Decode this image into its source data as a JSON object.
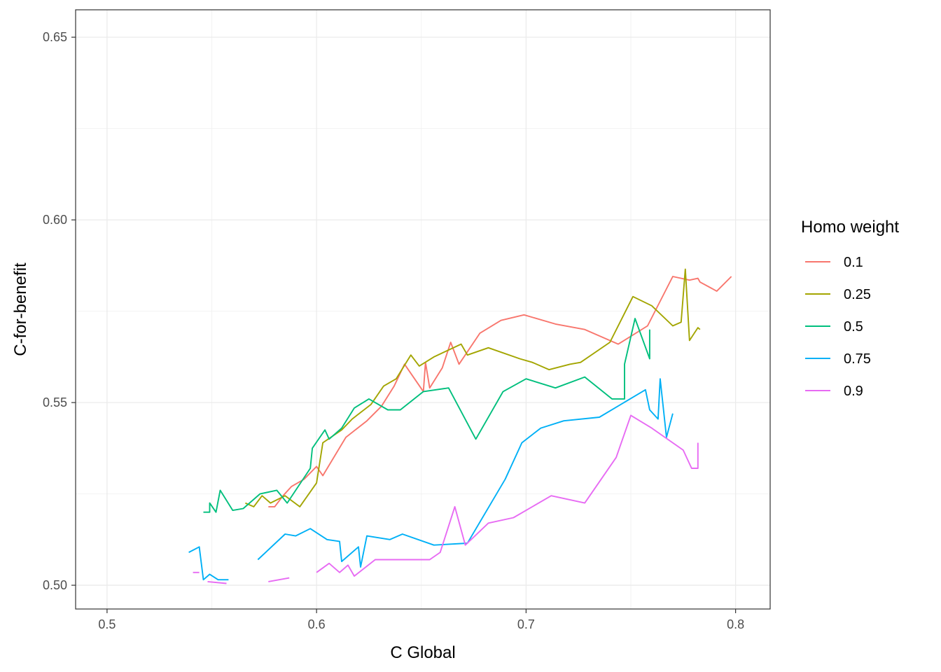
{
  "chart_data": {
    "type": "line",
    "title": "",
    "xlabel": "C Global",
    "ylabel": "C-for-benefit",
    "xlim": [
      0.485,
      0.8165
    ],
    "ylim": [
      0.4935,
      0.6575
    ],
    "x_ticks": [
      0.5,
      0.6,
      0.7,
      0.8
    ],
    "x_tick_labels": [
      "0.5",
      "0.6",
      "0.7",
      "0.8"
    ],
    "y_ticks": [
      0.5,
      0.55,
      0.6,
      0.65
    ],
    "y_tick_labels": [
      "0.50",
      "0.55",
      "0.60",
      "0.65"
    ],
    "grid": true,
    "legend": {
      "title": "Homo weight",
      "position": "right"
    },
    "series": [
      {
        "name": "0.1",
        "color": "#F8766D",
        "segments": [
          [
            [
              0.577,
              0.5215
            ],
            [
              0.58,
              0.5215
            ],
            [
              0.584,
              0.5245
            ],
            [
              0.588,
              0.527
            ],
            [
              0.594,
              0.529
            ],
            [
              0.6,
              0.5325
            ],
            [
              0.603,
              0.53
            ],
            [
              0.614,
              0.5405
            ],
            [
              0.624,
              0.545
            ],
            [
              0.631,
              0.549
            ],
            [
              0.637,
              0.5545
            ],
            [
              0.642,
              0.5605
            ],
            [
              0.651,
              0.553
            ],
            [
              0.652,
              0.561
            ],
            [
              0.654,
              0.554
            ],
            [
              0.66,
              0.5595
            ],
            [
              0.664,
              0.5665
            ],
            [
              0.668,
              0.5605
            ],
            [
              0.678,
              0.569
            ],
            [
              0.688,
              0.5725
            ],
            [
              0.699,
              0.574
            ],
            [
              0.714,
              0.5715
            ],
            [
              0.728,
              0.57
            ],
            [
              0.744,
              0.566
            ],
            [
              0.758,
              0.571
            ],
            [
              0.77,
              0.5845
            ],
            [
              0.778,
              0.5835
            ],
            [
              0.782,
              0.584
            ],
            [
              0.783,
              0.583
            ],
            [
              0.791,
              0.5805
            ],
            [
              0.798,
              0.5845
            ]
          ]
        ]
      },
      {
        "name": "0.25",
        "color": "#A3A500",
        "segments": [
          [
            [
              0.566,
              0.5225
            ],
            [
              0.57,
              0.5215
            ],
            [
              0.574,
              0.5245
            ],
            [
              0.578,
              0.5225
            ],
            [
              0.585,
              0.5245
            ],
            [
              0.592,
              0.5215
            ],
            [
              0.6,
              0.528
            ],
            [
              0.603,
              0.539
            ],
            [
              0.612,
              0.5425
            ],
            [
              0.617,
              0.5455
            ],
            [
              0.626,
              0.5495
            ],
            [
              0.632,
              0.5545
            ],
            [
              0.638,
              0.5565
            ],
            [
              0.645,
              0.563
            ],
            [
              0.649,
              0.56
            ],
            [
              0.656,
              0.5625
            ],
            [
              0.669,
              0.566
            ],
            [
              0.672,
              0.563
            ],
            [
              0.682,
              0.565
            ],
            [
              0.697,
              0.562
            ],
            [
              0.703,
              0.561
            ],
            [
              0.711,
              0.559
            ],
            [
              0.721,
              0.5605
            ],
            [
              0.726,
              0.561
            ],
            [
              0.74,
              0.5665
            ],
            [
              0.751,
              0.579
            ],
            [
              0.76,
              0.5765
            ],
            [
              0.77,
              0.571
            ],
            [
              0.774,
              0.572
            ],
            [
              0.776,
              0.5865
            ],
            [
              0.778,
              0.567
            ],
            [
              0.782,
              0.5705
            ],
            [
              0.783,
              0.57
            ]
          ]
        ]
      },
      {
        "name": "0.5",
        "color": "#00BF7D",
        "segments": [
          [
            [
              0.546,
              0.52
            ],
            [
              0.549,
              0.52
            ],
            [
              0.549,
              0.5225
            ],
            [
              0.552,
              0.52
            ],
            [
              0.554,
              0.526
            ],
            [
              0.56,
              0.5205
            ],
            [
              0.565,
              0.521
            ],
            [
              0.573,
              0.525
            ],
            [
              0.581,
              0.526
            ],
            [
              0.586,
              0.5225
            ],
            [
              0.597,
              0.532
            ],
            [
              0.598,
              0.5375
            ],
            [
              0.604,
              0.5425
            ],
            [
              0.606,
              0.54
            ],
            [
              0.612,
              0.543
            ],
            [
              0.618,
              0.5485
            ],
            [
              0.625,
              0.551
            ],
            [
              0.634,
              0.548
            ],
            [
              0.64,
              0.548
            ],
            [
              0.651,
              0.553
            ],
            [
              0.663,
              0.554
            ],
            [
              0.676,
              0.54
            ],
            [
              0.689,
              0.553
            ],
            [
              0.7,
              0.5565
            ],
            [
              0.714,
              0.554
            ],
            [
              0.728,
              0.557
            ],
            [
              0.741,
              0.551
            ],
            [
              0.747,
              0.551
            ],
            [
              0.747,
              0.5605
            ],
            [
              0.752,
              0.573
            ],
            [
              0.759,
              0.562
            ],
            [
              0.759,
              0.57
            ]
          ]
        ]
      },
      {
        "name": "0.75",
        "color": "#00B0F6",
        "segments": [
          [
            [
              0.539,
              0.509
            ],
            [
              0.544,
              0.5105
            ],
            [
              0.546,
              0.5015
            ],
            [
              0.549,
              0.503
            ],
            [
              0.553,
              0.5015
            ],
            [
              0.558,
              0.5015
            ]
          ],
          [
            [
              0.572,
              0.507
            ],
            [
              0.585,
              0.514
            ],
            [
              0.59,
              0.5135
            ],
            [
              0.597,
              0.5155
            ],
            [
              0.605,
              0.5125
            ],
            [
              0.611,
              0.512
            ],
            [
              0.612,
              0.5065
            ],
            [
              0.62,
              0.5105
            ],
            [
              0.621,
              0.505
            ],
            [
              0.624,
              0.5135
            ],
            [
              0.635,
              0.5125
            ],
            [
              0.641,
              0.514
            ],
            [
              0.656,
              0.511
            ],
            [
              0.672,
              0.5115
            ],
            [
              0.69,
              0.529
            ],
            [
              0.698,
              0.539
            ],
            [
              0.707,
              0.543
            ],
            [
              0.718,
              0.545
            ],
            [
              0.735,
              0.546
            ],
            [
              0.757,
              0.5535
            ],
            [
              0.759,
              0.548
            ],
            [
              0.763,
              0.5455
            ],
            [
              0.764,
              0.5565
            ],
            [
              0.767,
              0.5405
            ],
            [
              0.77,
              0.547
            ]
          ]
        ]
      },
      {
        "name": "0.9",
        "color": "#E76BF3",
        "segments": [
          [
            [
              0.541,
              0.5035
            ],
            [
              0.544,
              0.5035
            ]
          ],
          [
            [
              0.548,
              0.501
            ],
            [
              0.557,
              0.5005
            ]
          ],
          [
            [
              0.577,
              0.501
            ],
            [
              0.587,
              0.502
            ]
          ],
          [
            [
              0.6,
              0.5035
            ],
            [
              0.606,
              0.506
            ],
            [
              0.611,
              0.5035
            ],
            [
              0.615,
              0.5055
            ],
            [
              0.618,
              0.5025
            ],
            [
              0.628,
              0.507
            ],
            [
              0.64,
              0.507
            ],
            [
              0.654,
              0.507
            ],
            [
              0.659,
              0.509
            ],
            [
              0.666,
              0.5215
            ],
            [
              0.671,
              0.511
            ],
            [
              0.682,
              0.517
            ],
            [
              0.694,
              0.5185
            ],
            [
              0.712,
              0.5245
            ],
            [
              0.728,
              0.5225
            ],
            [
              0.743,
              0.535
            ],
            [
              0.75,
              0.5465
            ],
            [
              0.76,
              0.543
            ],
            [
              0.765,
              0.541
            ],
            [
              0.775,
              0.537
            ],
            [
              0.779,
              0.532
            ],
            [
              0.782,
              0.532
            ],
            [
              0.782,
              0.539
            ]
          ]
        ]
      }
    ]
  }
}
